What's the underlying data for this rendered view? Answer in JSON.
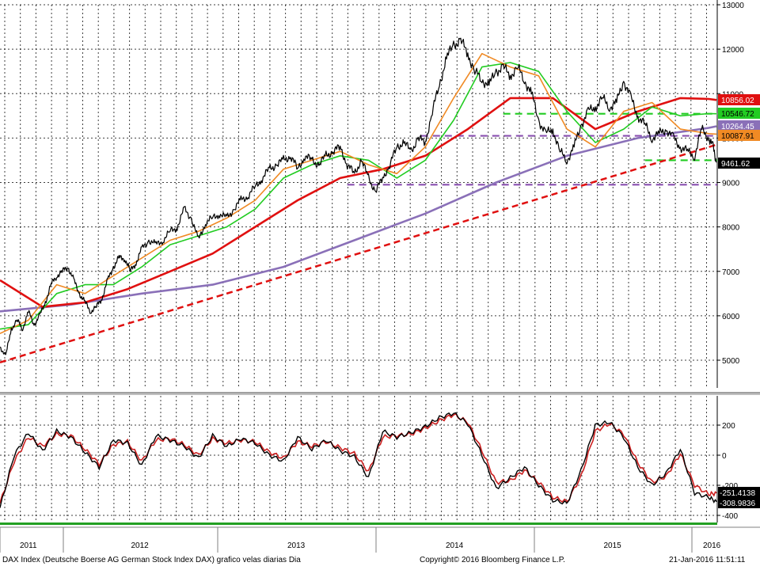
{
  "footer": {
    "description": "DAX Index (Deutsche Boerse AG German Stock Index DAX) grafico velas diarias  Dia",
    "copyright": "Copyright© 2016 Bloomberg Finance L.P.",
    "timestamp": "21-Jan-2016 11:51:11"
  },
  "colors": {
    "price": "#000000",
    "sma_short": "#f08a24",
    "sma_mid": "#22cc22",
    "sma_long": "#e01010",
    "sma_very_long": "#8a70b8",
    "trendline": "#e01010",
    "level_green": "#22cc22",
    "level_purple": "#8a50b0",
    "osc_main": "#000000",
    "osc_signal": "#cc2020",
    "bottom_band": "#22a022"
  },
  "chart_data": [
    {
      "type": "line",
      "title": "",
      "x_ticks": [
        "2011",
        "2012",
        "2013",
        "2014",
        "2015",
        "2016"
      ],
      "y_ticks": [
        5000,
        6000,
        7000,
        8000,
        9000,
        10000,
        11000,
        12000,
        13000
      ],
      "ylim": [
        4500,
        13000
      ],
      "xlim": [
        2011.0,
        2016.06
      ],
      "grid": true,
      "series": [
        {
          "key": "price",
          "x": [
            2011.0,
            2011.04,
            2011.08,
            2011.12,
            2011.16,
            2011.2,
            2011.24,
            2011.28,
            2011.32,
            2011.36,
            2011.4,
            2011.44,
            2011.48,
            2011.52,
            2011.56,
            2011.6,
            2011.64,
            2011.68,
            2011.72,
            2011.76,
            2011.8,
            2011.84,
            2011.88,
            2011.92,
            2011.96,
            2012.0,
            2012.05,
            2012.1,
            2012.15,
            2012.2,
            2012.25,
            2012.3,
            2012.35,
            2012.4,
            2012.45,
            2012.5,
            2012.55,
            2012.6,
            2012.65,
            2012.7,
            2012.75,
            2012.8,
            2012.85,
            2012.9,
            2012.95,
            2013.0,
            2013.05,
            2013.1,
            2013.15,
            2013.2,
            2013.25,
            2013.3,
            2013.35,
            2013.4,
            2013.45,
            2013.5,
            2013.55,
            2013.6,
            2013.65,
            2013.7,
            2013.75,
            2013.8,
            2013.85,
            2013.9,
            2013.95,
            2014.0,
            2014.05,
            2014.1,
            2014.15,
            2014.2,
            2014.25,
            2014.3,
            2014.35,
            2014.4,
            2014.45,
            2014.5,
            2014.55,
            2014.6,
            2014.65,
            2014.7,
            2014.75,
            2014.8,
            2014.85,
            2014.9,
            2014.95,
            2015.0,
            2015.05,
            2015.1,
            2015.15,
            2015.2,
            2015.25,
            2015.3,
            2015.35,
            2015.4,
            2015.45,
            2015.5,
            2015.55,
            2015.6,
            2015.65,
            2015.7,
            2015.75,
            2015.8,
            2015.85,
            2015.9,
            2015.95,
            2016.0,
            2016.03,
            2016.055
          ],
          "y": [
            5300,
            5100,
            5700,
            5900,
            5700,
            6100,
            5800,
            6000,
            6300,
            6700,
            6900,
            7000,
            7100,
            6800,
            6500,
            6300,
            6100,
            6200,
            6400,
            6800,
            7100,
            7300,
            7300,
            7000,
            7200,
            7500,
            7700,
            7600,
            7700,
            7900,
            8000,
            8400,
            8200,
            7700,
            8100,
            8200,
            8300,
            8200,
            8400,
            8600,
            8700,
            8900,
            9100,
            9300,
            9400,
            9500,
            9600,
            9300,
            9600,
            9500,
            9400,
            9600,
            9700,
            9800,
            9400,
            9200,
            9500,
            9100,
            8800,
            9100,
            9400,
            9800,
            9900,
            9700,
            10000,
            9900,
            10600,
            11200,
            11800,
            12100,
            12200,
            11900,
            11500,
            11300,
            11200,
            11500,
            11600,
            11400,
            11600,
            11300,
            11000,
            10400,
            10100,
            10200,
            9700,
            9500,
            9800,
            10300,
            10600,
            10700,
            10900,
            10700,
            10800,
            11300,
            10900,
            10500,
            10300,
            10000,
            10100,
            10200,
            10000,
            9800,
            9700,
            9600,
            10200,
            10000,
            9800,
            9461.62
          ]
        },
        {
          "key": "sma_short",
          "x": [
            2011.0,
            2011.2,
            2011.4,
            2011.6,
            2011.8,
            2012.0,
            2012.2,
            2012.4,
            2012.6,
            2012.8,
            2013.0,
            2013.2,
            2013.4,
            2013.6,
            2013.8,
            2014.0,
            2014.2,
            2014.4,
            2014.6,
            2014.8,
            2015.0,
            2015.2,
            2015.4,
            2015.6,
            2015.8,
            2016.0,
            2016.055
          ],
          "y": [
            5600,
            5900,
            6700,
            6500,
            6900,
            7300,
            7700,
            7900,
            8200,
            8600,
            9300,
            9500,
            9700,
            9400,
            9200,
            9800,
            10900,
            11900,
            11600,
            11400,
            10200,
            9800,
            10600,
            10800,
            10200,
            10100,
            10087.91
          ]
        },
        {
          "key": "sma_mid",
          "x": [
            2011.0,
            2011.2,
            2011.4,
            2011.6,
            2011.8,
            2012.0,
            2012.2,
            2012.4,
            2012.6,
            2012.8,
            2013.0,
            2013.2,
            2013.4,
            2013.6,
            2013.8,
            2014.0,
            2014.2,
            2014.4,
            2014.6,
            2014.8,
            2015.0,
            2015.2,
            2015.4,
            2015.6,
            2015.8,
            2016.0,
            2016.055
          ],
          "y": [
            5700,
            5800,
            6500,
            6700,
            6700,
            7100,
            7600,
            7800,
            8000,
            8400,
            9100,
            9400,
            9600,
            9500,
            9100,
            9500,
            10400,
            11600,
            11700,
            11500,
            10600,
            9900,
            10200,
            10700,
            10500,
            10550,
            10546.72
          ]
        },
        {
          "key": "sma_long",
          "x": [
            2011.0,
            2011.3,
            2011.6,
            2011.9,
            2012.2,
            2012.5,
            2012.8,
            2013.1,
            2013.4,
            2013.7,
            2014.0,
            2014.3,
            2014.6,
            2014.9,
            2015.2,
            2015.5,
            2015.8,
            2016.0,
            2016.055
          ],
          "y": [
            6800,
            6200,
            6300,
            6600,
            7000,
            7400,
            8000,
            8600,
            9100,
            9300,
            9600,
            10200,
            10900,
            10900,
            10200,
            10600,
            10900,
            10880,
            10856.02
          ]
        },
        {
          "key": "sma_very_long",
          "x": [
            2011.0,
            2011.5,
            2012.0,
            2012.5,
            2013.0,
            2013.5,
            2014.0,
            2014.5,
            2015.0,
            2015.5,
            2016.0,
            2016.055
          ],
          "y": [
            6100,
            6250,
            6500,
            6700,
            7100,
            7700,
            8300,
            9000,
            9600,
            10000,
            10230,
            10264.45
          ]
        }
      ]
    },
    {
      "type": "line",
      "title": "",
      "y_ticks": [
        200,
        0,
        -200,
        -400
      ],
      "ylim": [
        -450,
        350
      ],
      "series": [
        {
          "key": "osc_main",
          "x": [
            2011.0,
            2011.1,
            2011.2,
            2011.3,
            2011.4,
            2011.5,
            2011.6,
            2011.7,
            2011.8,
            2011.9,
            2012.0,
            2012.1,
            2012.2,
            2012.3,
            2012.4,
            2012.5,
            2012.6,
            2012.7,
            2012.8,
            2012.9,
            2013.0,
            2013.1,
            2013.2,
            2013.3,
            2013.4,
            2013.5,
            2013.6,
            2013.7,
            2013.8,
            2013.9,
            2014.0,
            2014.1,
            2014.2,
            2014.3,
            2014.4,
            2014.5,
            2014.6,
            2014.7,
            2014.8,
            2014.9,
            2015.0,
            2015.1,
            2015.2,
            2015.3,
            2015.4,
            2015.5,
            2015.6,
            2015.7,
            2015.8,
            2015.9,
            2016.0,
            2016.055
          ],
          "y": [
            -350,
            0,
            150,
            30,
            160,
            120,
            20,
            -80,
            100,
            80,
            -70,
            130,
            100,
            60,
            -20,
            130,
            60,
            110,
            80,
            0,
            -40,
            120,
            40,
            100,
            30,
            -10,
            -150,
            160,
            120,
            150,
            190,
            250,
            280,
            210,
            0,
            -220,
            -150,
            -80,
            -200,
            -300,
            -320,
            -100,
            200,
            220,
            120,
            -80,
            -200,
            -120,
            40,
            -251.4138,
            -280,
            -308.9836
          ]
        },
        {
          "key": "osc_signal",
          "x": [
            2011.0,
            2011.1,
            2011.2,
            2011.3,
            2011.4,
            2011.5,
            2011.6,
            2011.7,
            2011.8,
            2011.9,
            2012.0,
            2012.1,
            2012.2,
            2012.3,
            2012.4,
            2012.5,
            2012.6,
            2012.7,
            2012.8,
            2012.9,
            2013.0,
            2013.1,
            2013.2,
            2013.3,
            2013.4,
            2013.5,
            2013.6,
            2013.7,
            2013.8,
            2013.9,
            2014.0,
            2014.1,
            2014.2,
            2014.3,
            2014.4,
            2014.5,
            2014.6,
            2014.7,
            2014.8,
            2014.9,
            2015.0,
            2015.1,
            2015.2,
            2015.3,
            2015.4,
            2015.5,
            2015.6,
            2015.7,
            2015.8,
            2015.9,
            2016.0,
            2016.055
          ],
          "y": [
            -320,
            -40,
            120,
            60,
            140,
            130,
            40,
            -60,
            70,
            90,
            -40,
            100,
            110,
            70,
            0,
            110,
            80,
            100,
            90,
            20,
            -20,
            90,
            60,
            90,
            50,
            10,
            -110,
            120,
            130,
            140,
            180,
            230,
            270,
            220,
            30,
            -180,
            -170,
            -100,
            -180,
            -280,
            -310,
            -140,
            160,
            210,
            140,
            -50,
            -180,
            -140,
            10,
            -200,
            -260,
            -251.4138
          ]
        }
      ]
    }
  ],
  "levels": {
    "green_upper": 10546.72,
    "green_lower": 9500,
    "purple_upper": 10050,
    "purple_lower": 8950
  },
  "trendline": {
    "x0": 2011.0,
    "y0": 4950,
    "x1": 2016.055,
    "y1": 9850
  },
  "value_tags": [
    {
      "label": "10856.02",
      "value": 10856.02,
      "color": "#e01010",
      "text_color": "#ffffff"
    },
    {
      "label": "10546.72",
      "value": 10546.72,
      "color": "#22cc22",
      "text_color": "#000000"
    },
    {
      "label": "10264.45",
      "value": 10264.45,
      "color": "#8a70b8",
      "text_color": "#ffffff"
    },
    {
      "label": "10087.91",
      "value": 10087.91,
      "color": "#f08a24",
      "text_color": "#000000"
    },
    {
      "label": "9461.62",
      "value": 9461.62,
      "color": "#000000",
      "text_color": "#ffffff"
    }
  ],
  "osc_tags": [
    {
      "label": "-251.4138",
      "value": -251.4138,
      "color": "#000000",
      "text_color": "#ffffff"
    },
    {
      "label": "-308.9836",
      "value": -308.9836,
      "color": "#000000",
      "text_color": "#ffffff"
    }
  ]
}
